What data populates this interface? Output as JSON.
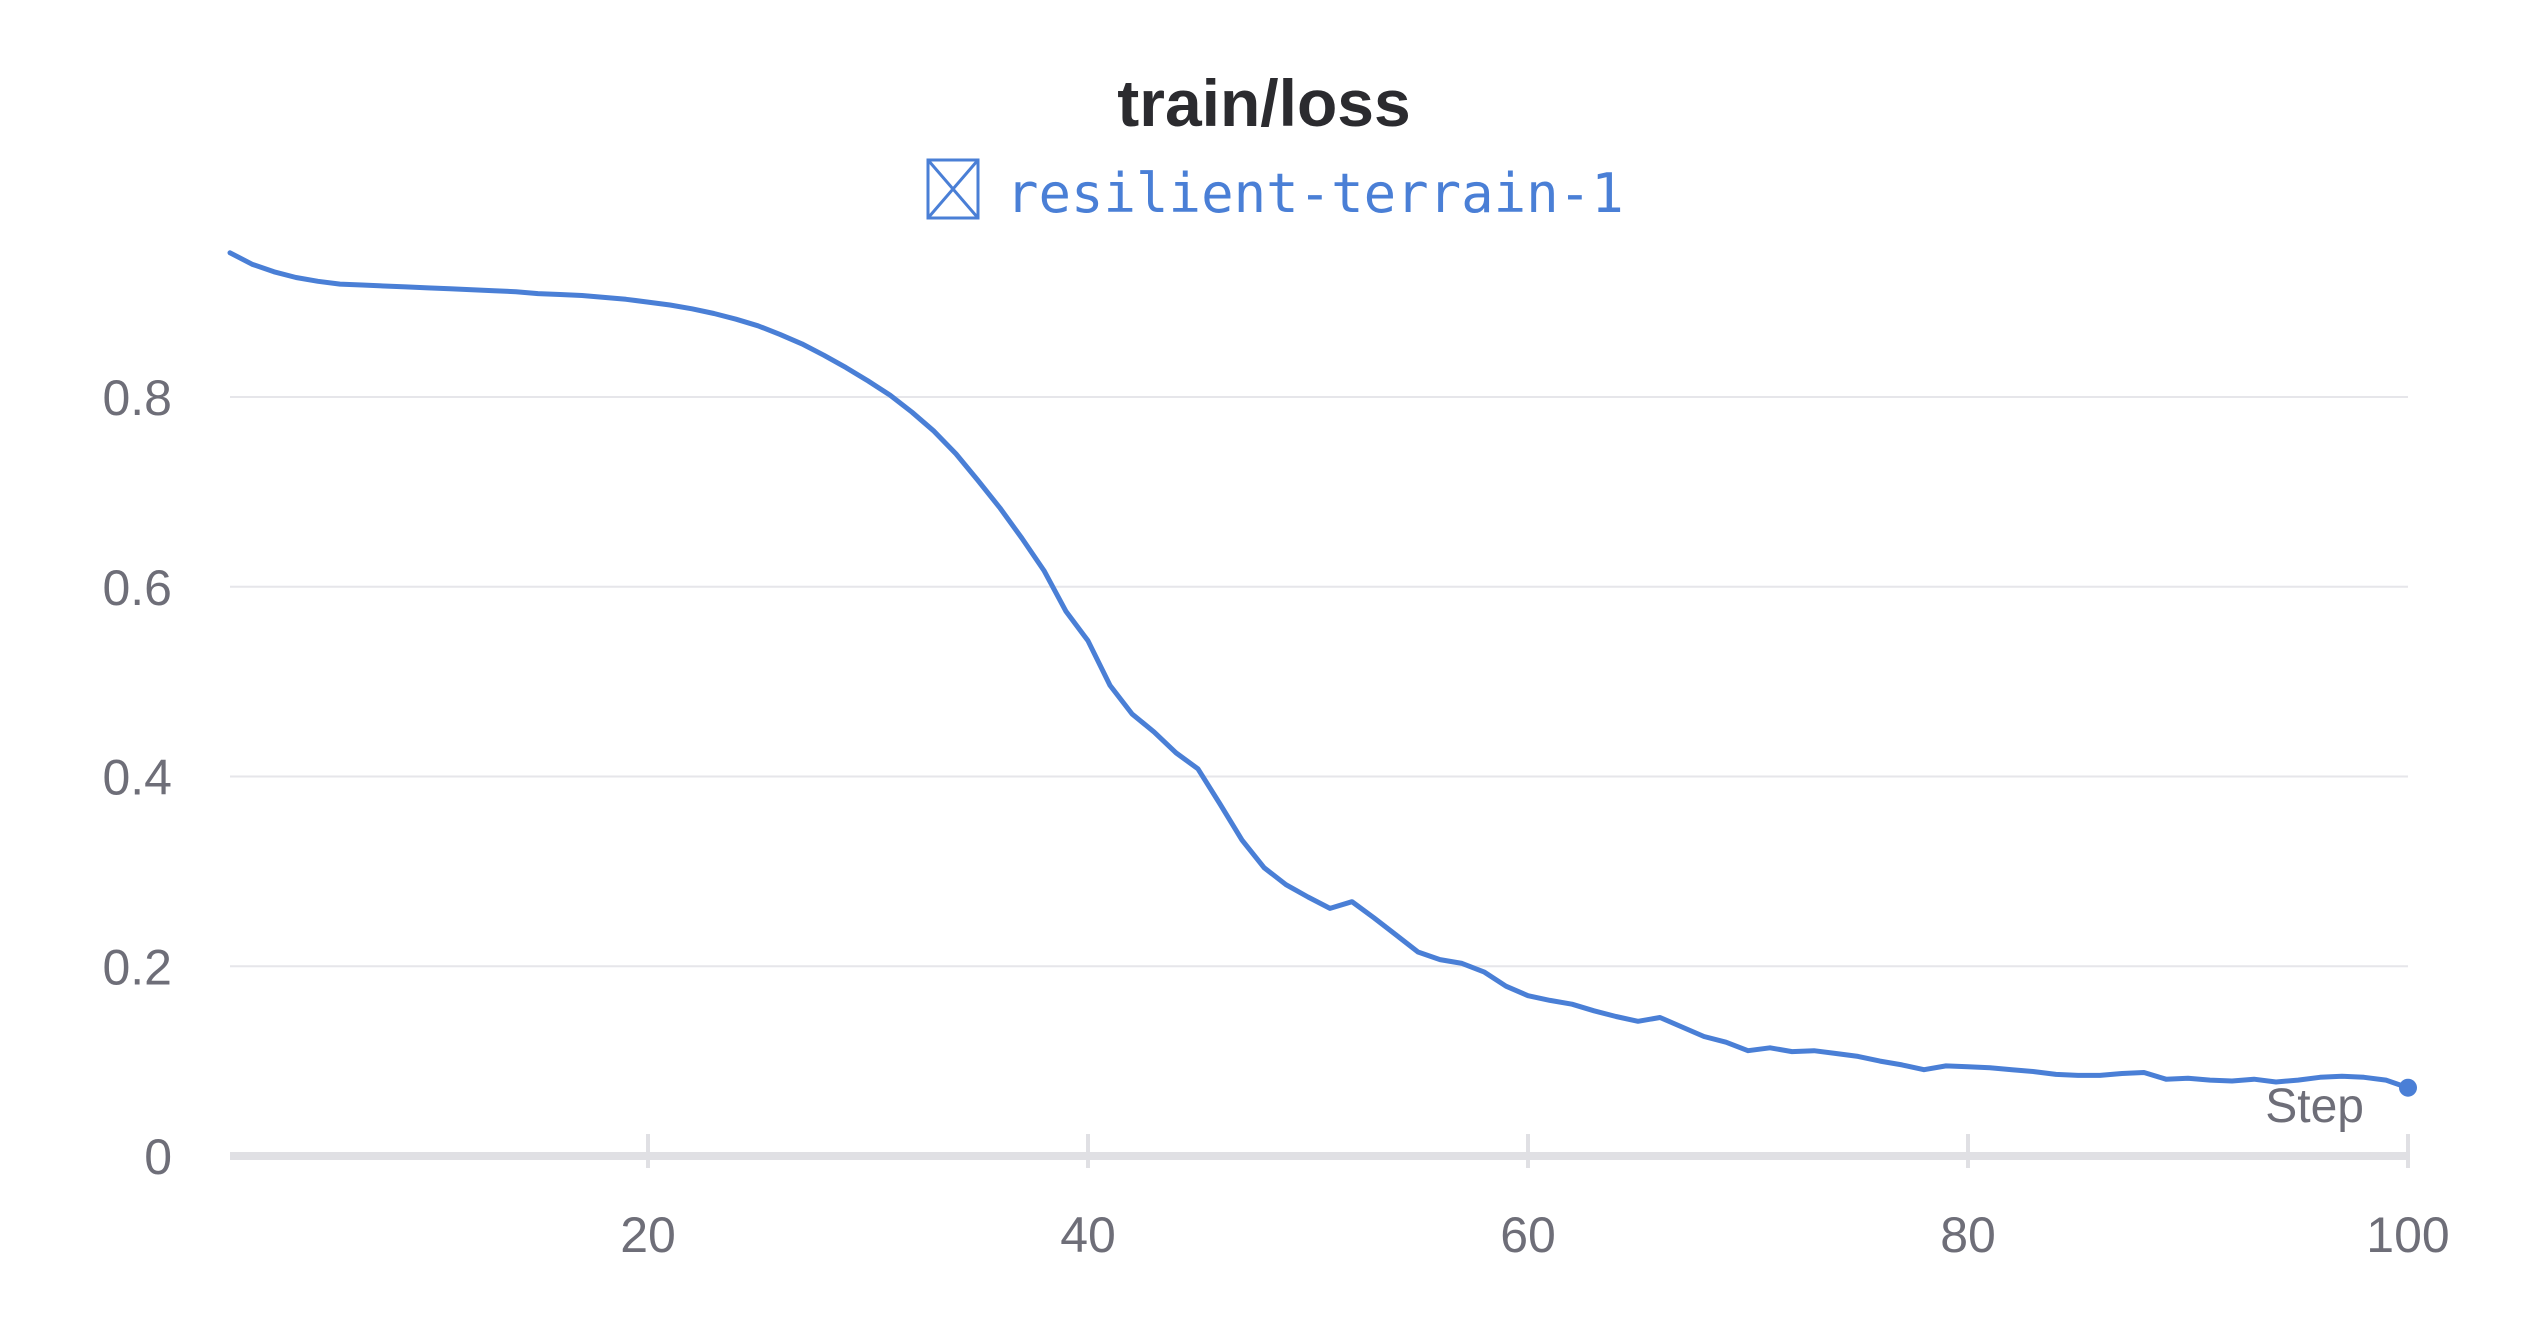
{
  "chart_data": {
    "type": "line",
    "title": "train/loss",
    "xlabel": "Step",
    "ylabel": "",
    "xlim": [
      1,
      100
    ],
    "ylim": [
      0,
      0.9
    ],
    "grid": true,
    "legend_position": "top-center",
    "x_ticks": [
      "20",
      "40",
      "60",
      "80",
      "100"
    ],
    "x_tick_values": [
      20,
      40,
      60,
      80,
      100
    ],
    "y_ticks": [
      "0",
      "0.2",
      "0.4",
      "0.6",
      "0.8"
    ],
    "y_tick_values": [
      0,
      0.2,
      0.4,
      0.6,
      0.8
    ],
    "colors": {
      "series": "#4a7fd6",
      "grid": "#e6e6ea",
      "axis": "#e0e0e4",
      "text": "#6e6e78",
      "title": "#2b2b2f"
    },
    "series": [
      {
        "name": "resilient-terrain-1",
        "icon": "box-cross-icon",
        "x": [
          1,
          2,
          3,
          4,
          5,
          6,
          7,
          8,
          9,
          10,
          11,
          12,
          13,
          14,
          15,
          16,
          17,
          18,
          19,
          20,
          21,
          22,
          23,
          24,
          25,
          26,
          27,
          28,
          29,
          30,
          31,
          32,
          33,
          34,
          35,
          36,
          37,
          38,
          39,
          40,
          41,
          42,
          43,
          44,
          45,
          46,
          47,
          48,
          49,
          50,
          51,
          52,
          53,
          54,
          55,
          56,
          57,
          58,
          59,
          60,
          61,
          62,
          63,
          64,
          65,
          66,
          67,
          68,
          69,
          70,
          71,
          72,
          73,
          74,
          75,
          76,
          77,
          78,
          79,
          80,
          81,
          82,
          83,
          84,
          85,
          86,
          87,
          88,
          89,
          90,
          91,
          92,
          93,
          94,
          95,
          96,
          97,
          98,
          99,
          100
        ],
        "y": [
          0.952,
          0.94,
          0.932,
          0.926,
          0.922,
          0.919,
          0.918,
          0.917,
          0.916,
          0.915,
          0.914,
          0.913,
          0.912,
          0.911,
          0.909,
          0.908,
          0.907,
          0.905,
          0.903,
          0.9,
          0.897,
          0.893,
          0.888,
          0.882,
          0.875,
          0.866,
          0.856,
          0.844,
          0.831,
          0.817,
          0.802,
          0.784,
          0.764,
          0.74,
          0.712,
          0.683,
          0.651,
          0.617,
          0.574,
          0.543,
          0.496,
          0.466,
          0.447,
          0.425,
          0.408,
          0.371,
          0.333,
          0.304,
          0.286,
          0.273,
          0.261,
          0.268,
          0.251,
          0.233,
          0.215,
          0.207,
          0.203,
          0.194,
          0.179,
          0.169,
          0.164,
          0.16,
          0.153,
          0.147,
          0.142,
          0.146,
          0.136,
          0.126,
          0.12,
          0.111,
          0.114,
          0.11,
          0.111,
          0.108,
          0.105,
          0.1,
          0.096,
          0.091,
          0.095,
          0.094,
          0.093,
          0.091,
          0.089,
          0.086,
          0.085,
          0.085,
          0.087,
          0.088,
          0.081,
          0.082,
          0.08,
          0.079,
          0.081,
          0.078,
          0.08,
          0.083,
          0.084,
          0.083,
          0.08,
          0.072
        ]
      }
    ]
  }
}
